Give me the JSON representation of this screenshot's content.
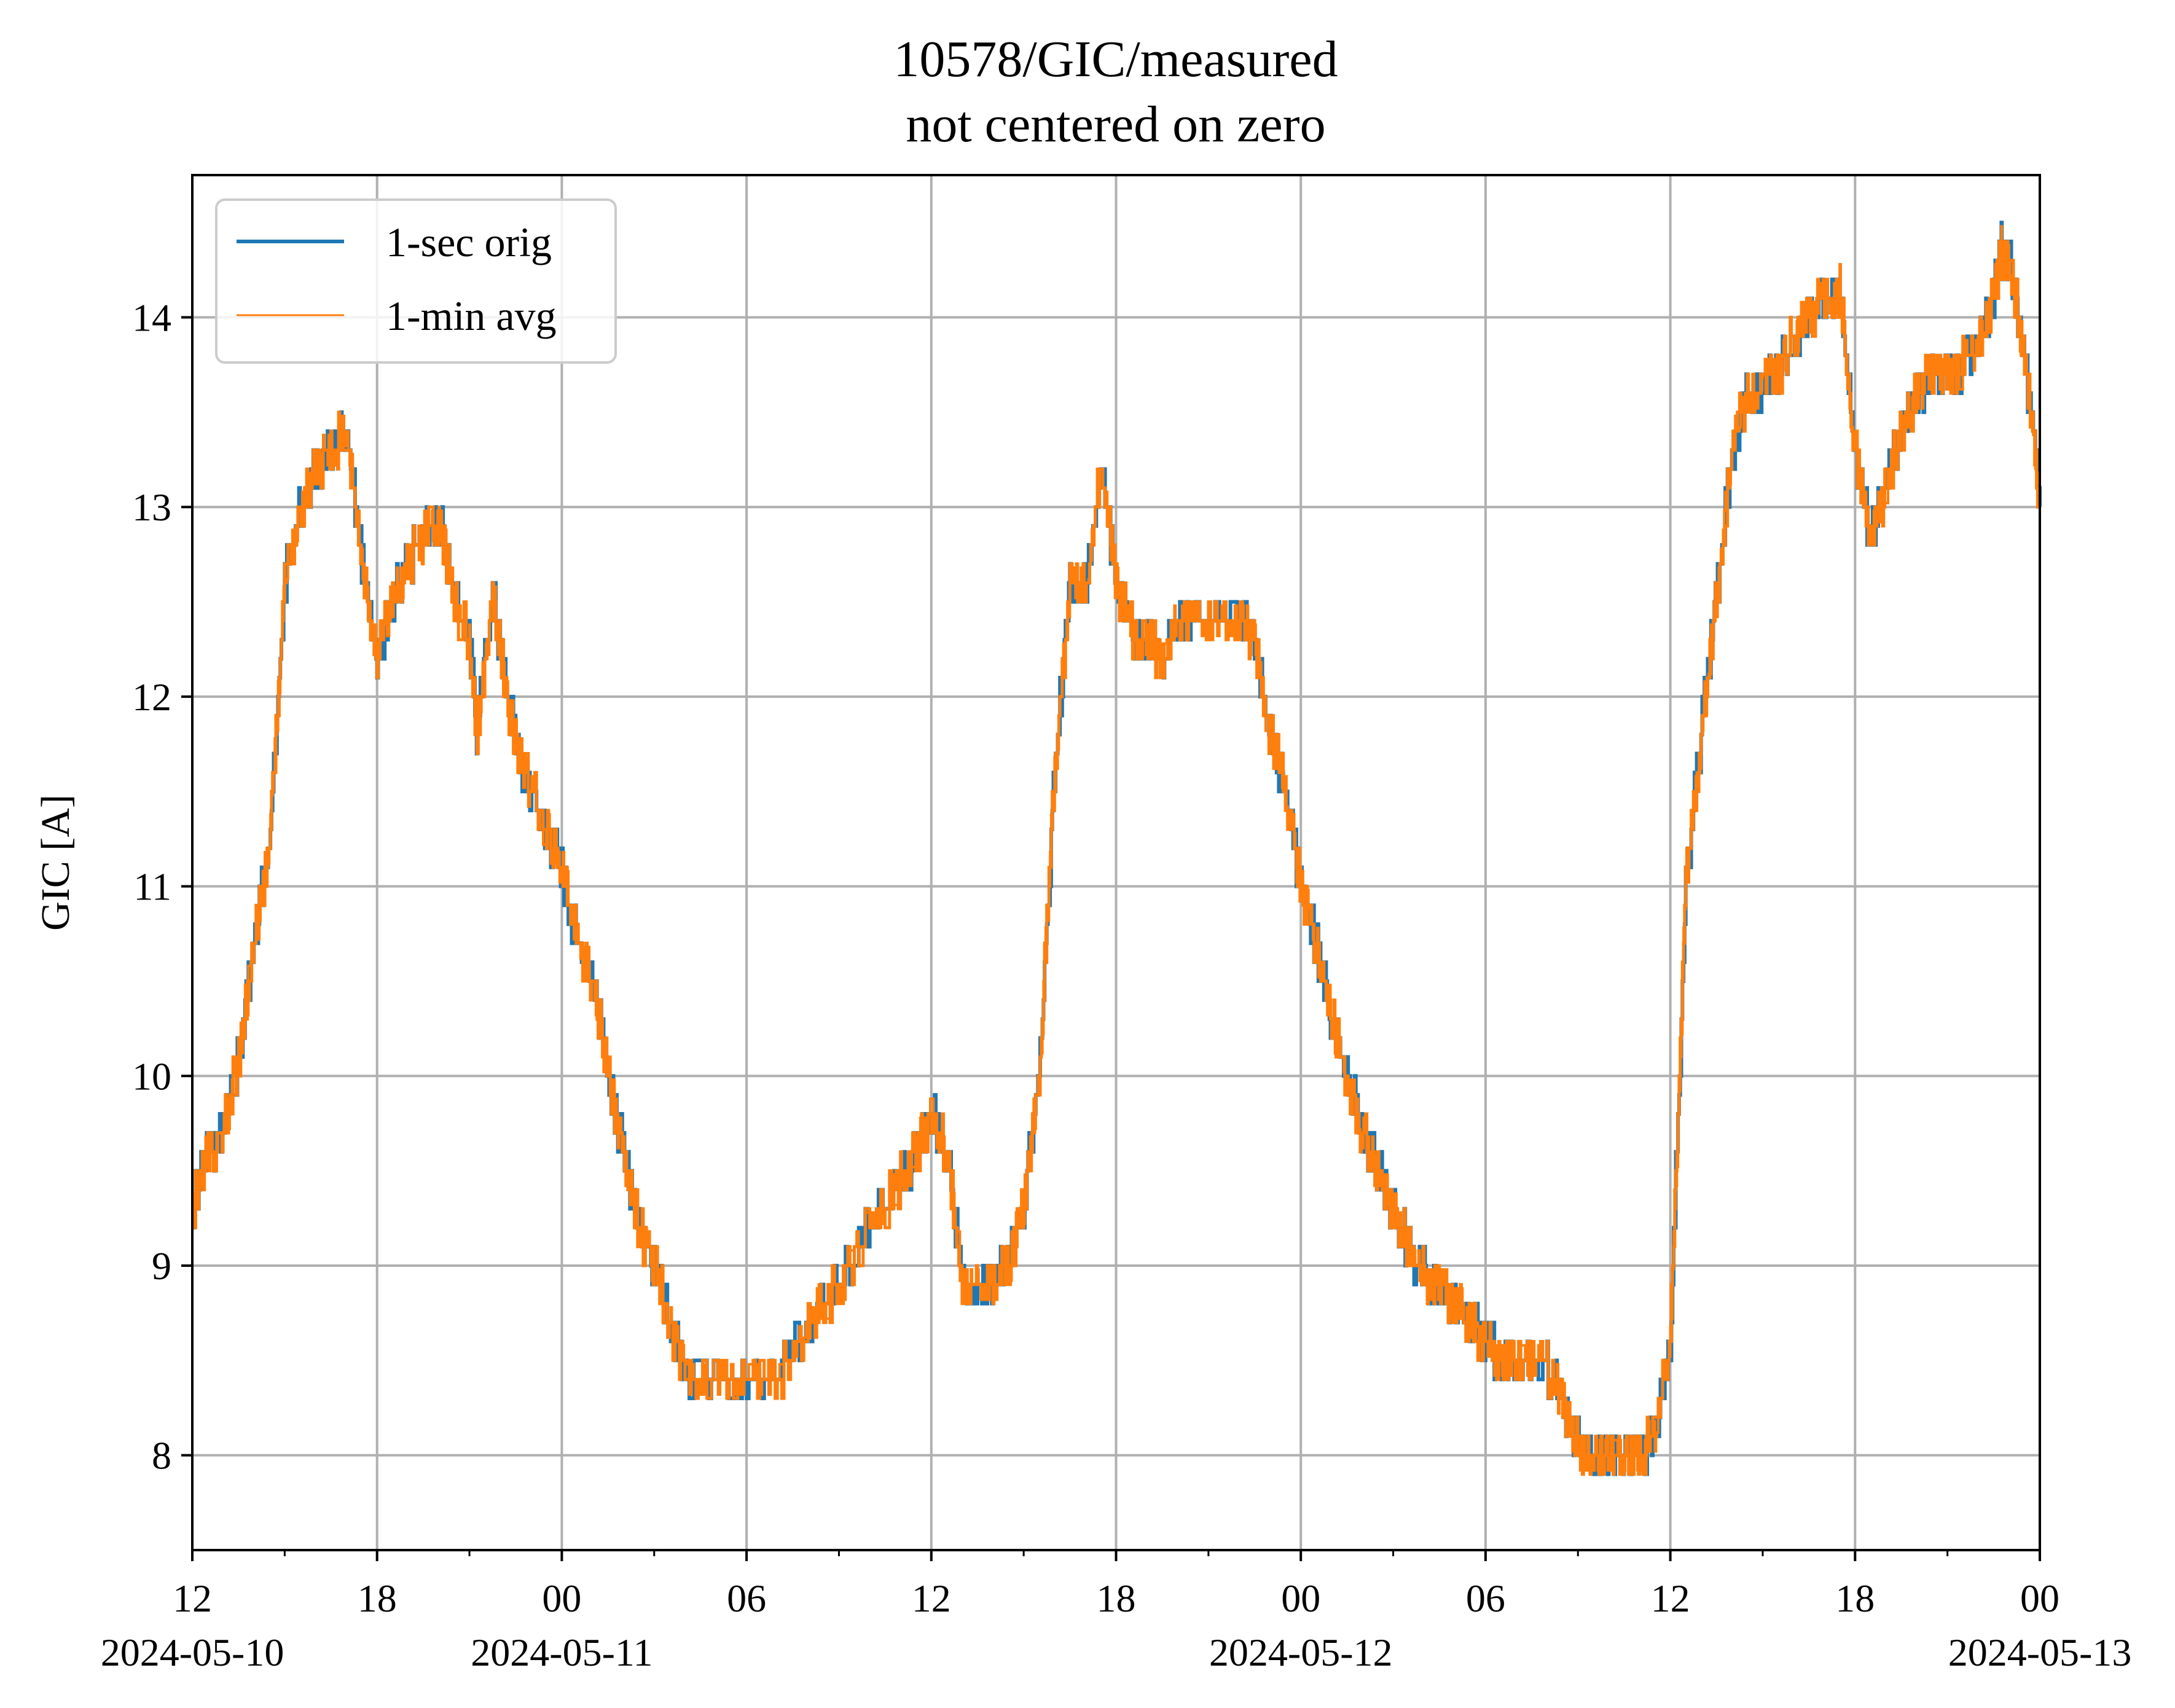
{
  "chart_data": {
    "type": "line",
    "title": "10578/GIC/measured",
    "subtitle": "not centered on zero",
    "xlabel": "",
    "ylabel": "GIC [A]",
    "x_range": [
      "2024-05-10 12:00",
      "2024-05-13 00:00"
    ],
    "ylim": [
      7.5,
      14.75
    ],
    "grid": true,
    "legend_position": "top-left",
    "x_ticks": [
      {
        "t": "2024-05-10 12:00",
        "label": "12",
        "date": "2024-05-10"
      },
      {
        "t": "2024-05-10 18:00",
        "label": "18",
        "date": ""
      },
      {
        "t": "2024-05-11 00:00",
        "label": "00",
        "date": "2024-05-11"
      },
      {
        "t": "2024-05-11 06:00",
        "label": "06",
        "date": ""
      },
      {
        "t": "2024-05-11 12:00",
        "label": "12",
        "date": ""
      },
      {
        "t": "2024-05-11 18:00",
        "label": "18",
        "date": ""
      },
      {
        "t": "2024-05-12 00:00",
        "label": "00",
        "date": "2024-05-12"
      },
      {
        "t": "2024-05-12 06:00",
        "label": "06",
        "date": ""
      },
      {
        "t": "2024-05-12 12:00",
        "label": "12",
        "date": ""
      },
      {
        "t": "2024-05-12 18:00",
        "label": "18",
        "date": ""
      },
      {
        "t": "2024-05-13 00:00",
        "label": "00",
        "date": "2024-05-13"
      }
    ],
    "minor_x_ticks": [
      "2024-05-10 15:00",
      "2024-05-10 21:00",
      "2024-05-11 03:00",
      "2024-05-11 09:00",
      "2024-05-11 15:00",
      "2024-05-11 21:00",
      "2024-05-12 03:00",
      "2024-05-12 09:00",
      "2024-05-12 15:00",
      "2024-05-12 21:00"
    ],
    "y_ticks": [
      8,
      9,
      10,
      11,
      12,
      13,
      14
    ],
    "series": [
      {
        "name": "1-sec orig",
        "color": "#1f77b4",
        "points": [
          [
            "2024-05-10 12:00",
            9.3
          ],
          [
            "2024-05-10 12:30",
            9.6
          ],
          [
            "2024-05-10 13:00",
            9.7
          ],
          [
            "2024-05-10 13:30",
            10.1
          ],
          [
            "2024-05-10 14:00",
            10.7
          ],
          [
            "2024-05-10 14:30",
            11.2
          ],
          [
            "2024-05-10 15:00",
            12.6
          ],
          [
            "2024-05-10 15:30",
            13.0
          ],
          [
            "2024-05-10 16:00",
            13.2
          ],
          [
            "2024-05-10 16:30",
            13.3
          ],
          [
            "2024-05-10 17:00",
            13.4
          ],
          [
            "2024-05-10 17:30",
            12.7
          ],
          [
            "2024-05-10 18:00",
            12.2
          ],
          [
            "2024-05-10 18:30",
            12.5
          ],
          [
            "2024-05-10 19:00",
            12.7
          ],
          [
            "2024-05-10 19:30",
            12.85
          ],
          [
            "2024-05-10 20:00",
            12.95
          ],
          [
            "2024-05-10 20:30",
            12.5
          ],
          [
            "2024-05-10 21:00",
            12.3
          ],
          [
            "2024-05-10 21:15",
            11.8
          ],
          [
            "2024-05-10 21:45",
            12.55
          ],
          [
            "2024-05-10 22:15",
            11.95
          ],
          [
            "2024-05-10 22:45",
            11.6
          ],
          [
            "2024-05-10 23:30",
            11.3
          ],
          [
            "2024-05-11 00:00",
            11.1
          ],
          [
            "2024-05-11 00:30",
            10.7
          ],
          [
            "2024-05-11 01:00",
            10.5
          ],
          [
            "2024-05-11 01:30",
            10.0
          ],
          [
            "2024-05-11 02:00",
            9.6
          ],
          [
            "2024-05-11 02:30",
            9.2
          ],
          [
            "2024-05-11 03:00",
            9.0
          ],
          [
            "2024-05-11 03:30",
            8.7
          ],
          [
            "2024-05-11 04:00",
            8.45
          ],
          [
            "2024-05-11 05:00",
            8.4
          ],
          [
            "2024-05-11 06:00",
            8.35
          ],
          [
            "2024-05-11 07:00",
            8.4
          ],
          [
            "2024-05-11 08:00",
            8.7
          ],
          [
            "2024-05-11 09:00",
            8.9
          ],
          [
            "2024-05-11 10:00",
            9.2
          ],
          [
            "2024-05-11 11:00",
            9.45
          ],
          [
            "2024-05-11 11:30",
            9.6
          ],
          [
            "2024-05-11 12:00",
            9.8
          ],
          [
            "2024-05-11 12:30",
            9.6
          ],
          [
            "2024-05-11 13:00",
            8.9
          ],
          [
            "2024-05-11 13:30",
            8.85
          ],
          [
            "2024-05-11 14:00",
            8.9
          ],
          [
            "2024-05-11 14:30",
            9.0
          ],
          [
            "2024-05-11 15:00",
            9.3
          ],
          [
            "2024-05-11 15:30",
            10.0
          ],
          [
            "2024-05-11 16:00",
            11.6
          ],
          [
            "2024-05-11 16:30",
            12.6
          ],
          [
            "2024-05-11 17:00",
            12.55
          ],
          [
            "2024-05-11 17:30",
            13.2
          ],
          [
            "2024-05-11 18:00",
            12.6
          ],
          [
            "2024-05-11 18:30",
            12.35
          ],
          [
            "2024-05-11 19:00",
            12.3
          ],
          [
            "2024-05-11 19:30",
            12.2
          ],
          [
            "2024-05-11 20:00",
            12.4
          ],
          [
            "2024-05-11 21:00",
            12.35
          ],
          [
            "2024-05-11 22:00",
            12.4
          ],
          [
            "2024-05-11 22:30",
            12.3
          ],
          [
            "2024-05-11 23:00",
            11.8
          ],
          [
            "2024-05-11 23:30",
            11.5
          ],
          [
            "2024-05-12 00:00",
            11.0
          ],
          [
            "2024-05-12 00:30",
            10.7
          ],
          [
            "2024-05-12 01:00",
            10.3
          ],
          [
            "2024-05-12 01:30",
            10.0
          ],
          [
            "2024-05-12 02:00",
            9.7
          ],
          [
            "2024-05-12 02:30",
            9.5
          ],
          [
            "2024-05-12 03:00",
            9.3
          ],
          [
            "2024-05-12 03:30",
            9.1
          ],
          [
            "2024-05-12 04:00",
            8.95
          ],
          [
            "2024-05-12 04:30",
            8.9
          ],
          [
            "2024-05-12 05:00",
            8.8
          ],
          [
            "2024-05-12 05:30",
            8.7
          ],
          [
            "2024-05-12 06:00",
            8.6
          ],
          [
            "2024-05-12 06:30",
            8.5
          ],
          [
            "2024-05-12 07:00",
            8.5
          ],
          [
            "2024-05-12 08:00",
            8.45
          ],
          [
            "2024-05-12 08:30",
            8.3
          ],
          [
            "2024-05-12 09:00",
            8.05
          ],
          [
            "2024-05-12 09:30",
            7.95
          ],
          [
            "2024-05-12 10:00",
            7.95
          ],
          [
            "2024-05-12 10:30",
            7.95
          ],
          [
            "2024-05-12 11:00",
            8.0
          ],
          [
            "2024-05-12 11:30",
            8.1
          ],
          [
            "2024-05-12 12:00",
            8.6
          ],
          [
            "2024-05-12 12:30",
            11.0
          ],
          [
            "2024-05-12 13:00",
            11.8
          ],
          [
            "2024-05-12 13:30",
            12.5
          ],
          [
            "2024-05-12 14:00",
            13.3
          ],
          [
            "2024-05-12 14:30",
            13.6
          ],
          [
            "2024-05-12 15:00",
            13.65
          ],
          [
            "2024-05-12 15:30",
            13.7
          ],
          [
            "2024-05-12 16:00",
            13.9
          ],
          [
            "2024-05-12 16:30",
            14.0
          ],
          [
            "2024-05-12 17:00",
            14.1
          ],
          [
            "2024-05-12 17:30",
            14.15
          ],
          [
            "2024-05-12 18:00",
            13.3
          ],
          [
            "2024-05-12 18:30",
            12.85
          ],
          [
            "2024-05-12 19:00",
            13.1
          ],
          [
            "2024-05-12 19:30",
            13.4
          ],
          [
            "2024-05-12 20:00",
            13.6
          ],
          [
            "2024-05-12 20:30",
            13.7
          ],
          [
            "2024-05-12 21:00",
            13.65
          ],
          [
            "2024-05-12 21:30",
            13.75
          ],
          [
            "2024-05-12 22:00",
            13.85
          ],
          [
            "2024-05-12 22:30",
            14.1
          ],
          [
            "2024-05-12 22:45",
            14.35
          ],
          [
            "2024-05-12 23:00",
            14.3
          ],
          [
            "2024-05-12 23:30",
            13.8
          ],
          [
            "2024-05-13 00:00",
            13.0
          ]
        ]
      },
      {
        "name": "1-min avg",
        "color": "#ff7f0e",
        "points": "same as 1-sec orig"
      }
    ]
  }
}
